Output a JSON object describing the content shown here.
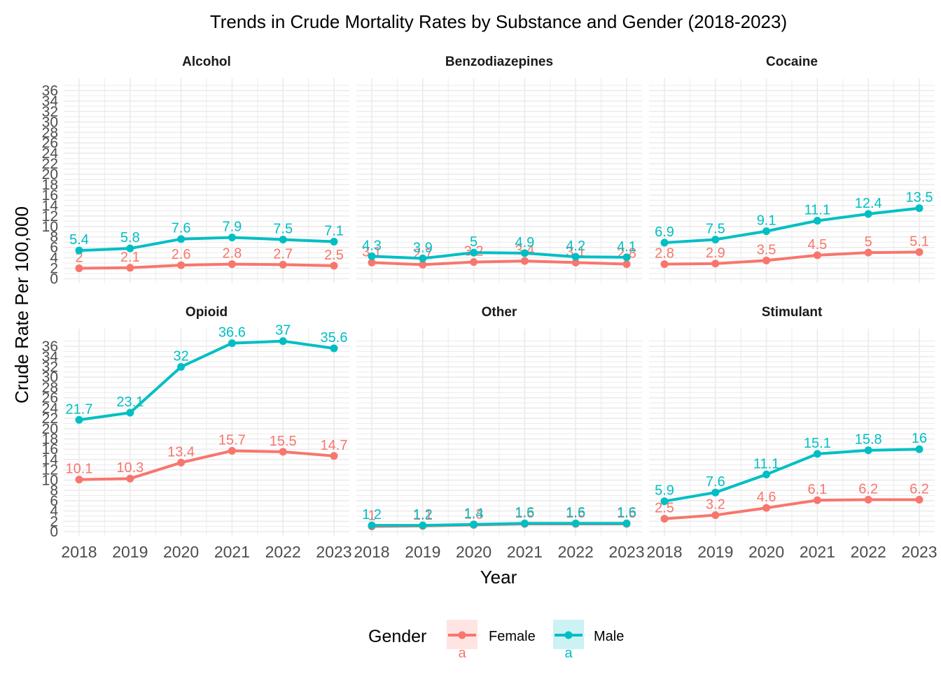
{
  "title": "Trends in Crude Mortality Rates by Substance and Gender (2018-2023)",
  "colors": {
    "female": "#F8766D",
    "male": "#00BFC4",
    "grid": "#EBEBEB",
    "text": "#000000",
    "tick_text": "#4D4D4D"
  },
  "chart_data": {
    "type": "line",
    "title": "Trends in Crude Mortality Rates by Substance and Gender (2018-2023)",
    "xlabel": "Year",
    "ylabel": "Crude Rate Per 100,000",
    "x": [
      "2018",
      "2019",
      "2020",
      "2021",
      "2022",
      "2023"
    ],
    "y_ticks": [
      "0",
      "2",
      "4",
      "6",
      "8",
      "10",
      "12",
      "14",
      "16",
      "18",
      "20",
      "22",
      "24",
      "26",
      "28",
      "30",
      "32",
      "34",
      "36"
    ],
    "ylim": [
      0,
      37
    ],
    "grid": true,
    "legend": {
      "title": "Gender",
      "position": "bottom",
      "entries": [
        "Female",
        "Male"
      ],
      "key_glyph_label": "a"
    },
    "panels": [
      {
        "name": "Alcohol",
        "series": [
          {
            "name": "Female",
            "values": [
              2,
              2.1,
              2.6,
              2.8,
              2.7,
              2.5
            ]
          },
          {
            "name": "Male",
            "values": [
              5.4,
              5.8,
              7.6,
              7.9,
              7.5,
              7.1
            ]
          }
        ]
      },
      {
        "name": "Benzodiazepines",
        "series": [
          {
            "name": "Female",
            "values": [
              3.1,
              2.7,
              3.2,
              3.4,
              3.1,
              2.8
            ]
          },
          {
            "name": "Male",
            "values": [
              4.3,
              3.9,
              5,
              4.9,
              4.2,
              4.1
            ]
          }
        ]
      },
      {
        "name": "Cocaine",
        "series": [
          {
            "name": "Female",
            "values": [
              2.8,
              2.9,
              3.5,
              4.5,
              5,
              5.1
            ]
          },
          {
            "name": "Male",
            "values": [
              6.9,
              7.5,
              9.1,
              11.1,
              12.4,
              13.5
            ]
          }
        ]
      },
      {
        "name": "Opioid",
        "series": [
          {
            "name": "Female",
            "values": [
              10.1,
              10.3,
              13.4,
              15.7,
              15.5,
              14.7
            ]
          },
          {
            "name": "Male",
            "values": [
              21.7,
              23.1,
              32,
              36.6,
              37,
              35.6
            ]
          }
        ]
      },
      {
        "name": "Other",
        "series": [
          {
            "name": "Female",
            "values": [
              1,
              1.1,
              1.3,
              1.5,
              1.5,
              1.5
            ]
          },
          {
            "name": "Male",
            "values": [
              1.2,
              1.2,
              1.4,
              1.6,
              1.6,
              1.6
            ]
          }
        ]
      },
      {
        "name": "Stimulant",
        "series": [
          {
            "name": "Female",
            "values": [
              2.5,
              3.2,
              4.6,
              6.1,
              6.2,
              6.2
            ]
          },
          {
            "name": "Male",
            "values": [
              5.9,
              7.6,
              11.1,
              15.1,
              15.8,
              16
            ]
          }
        ]
      }
    ]
  }
}
